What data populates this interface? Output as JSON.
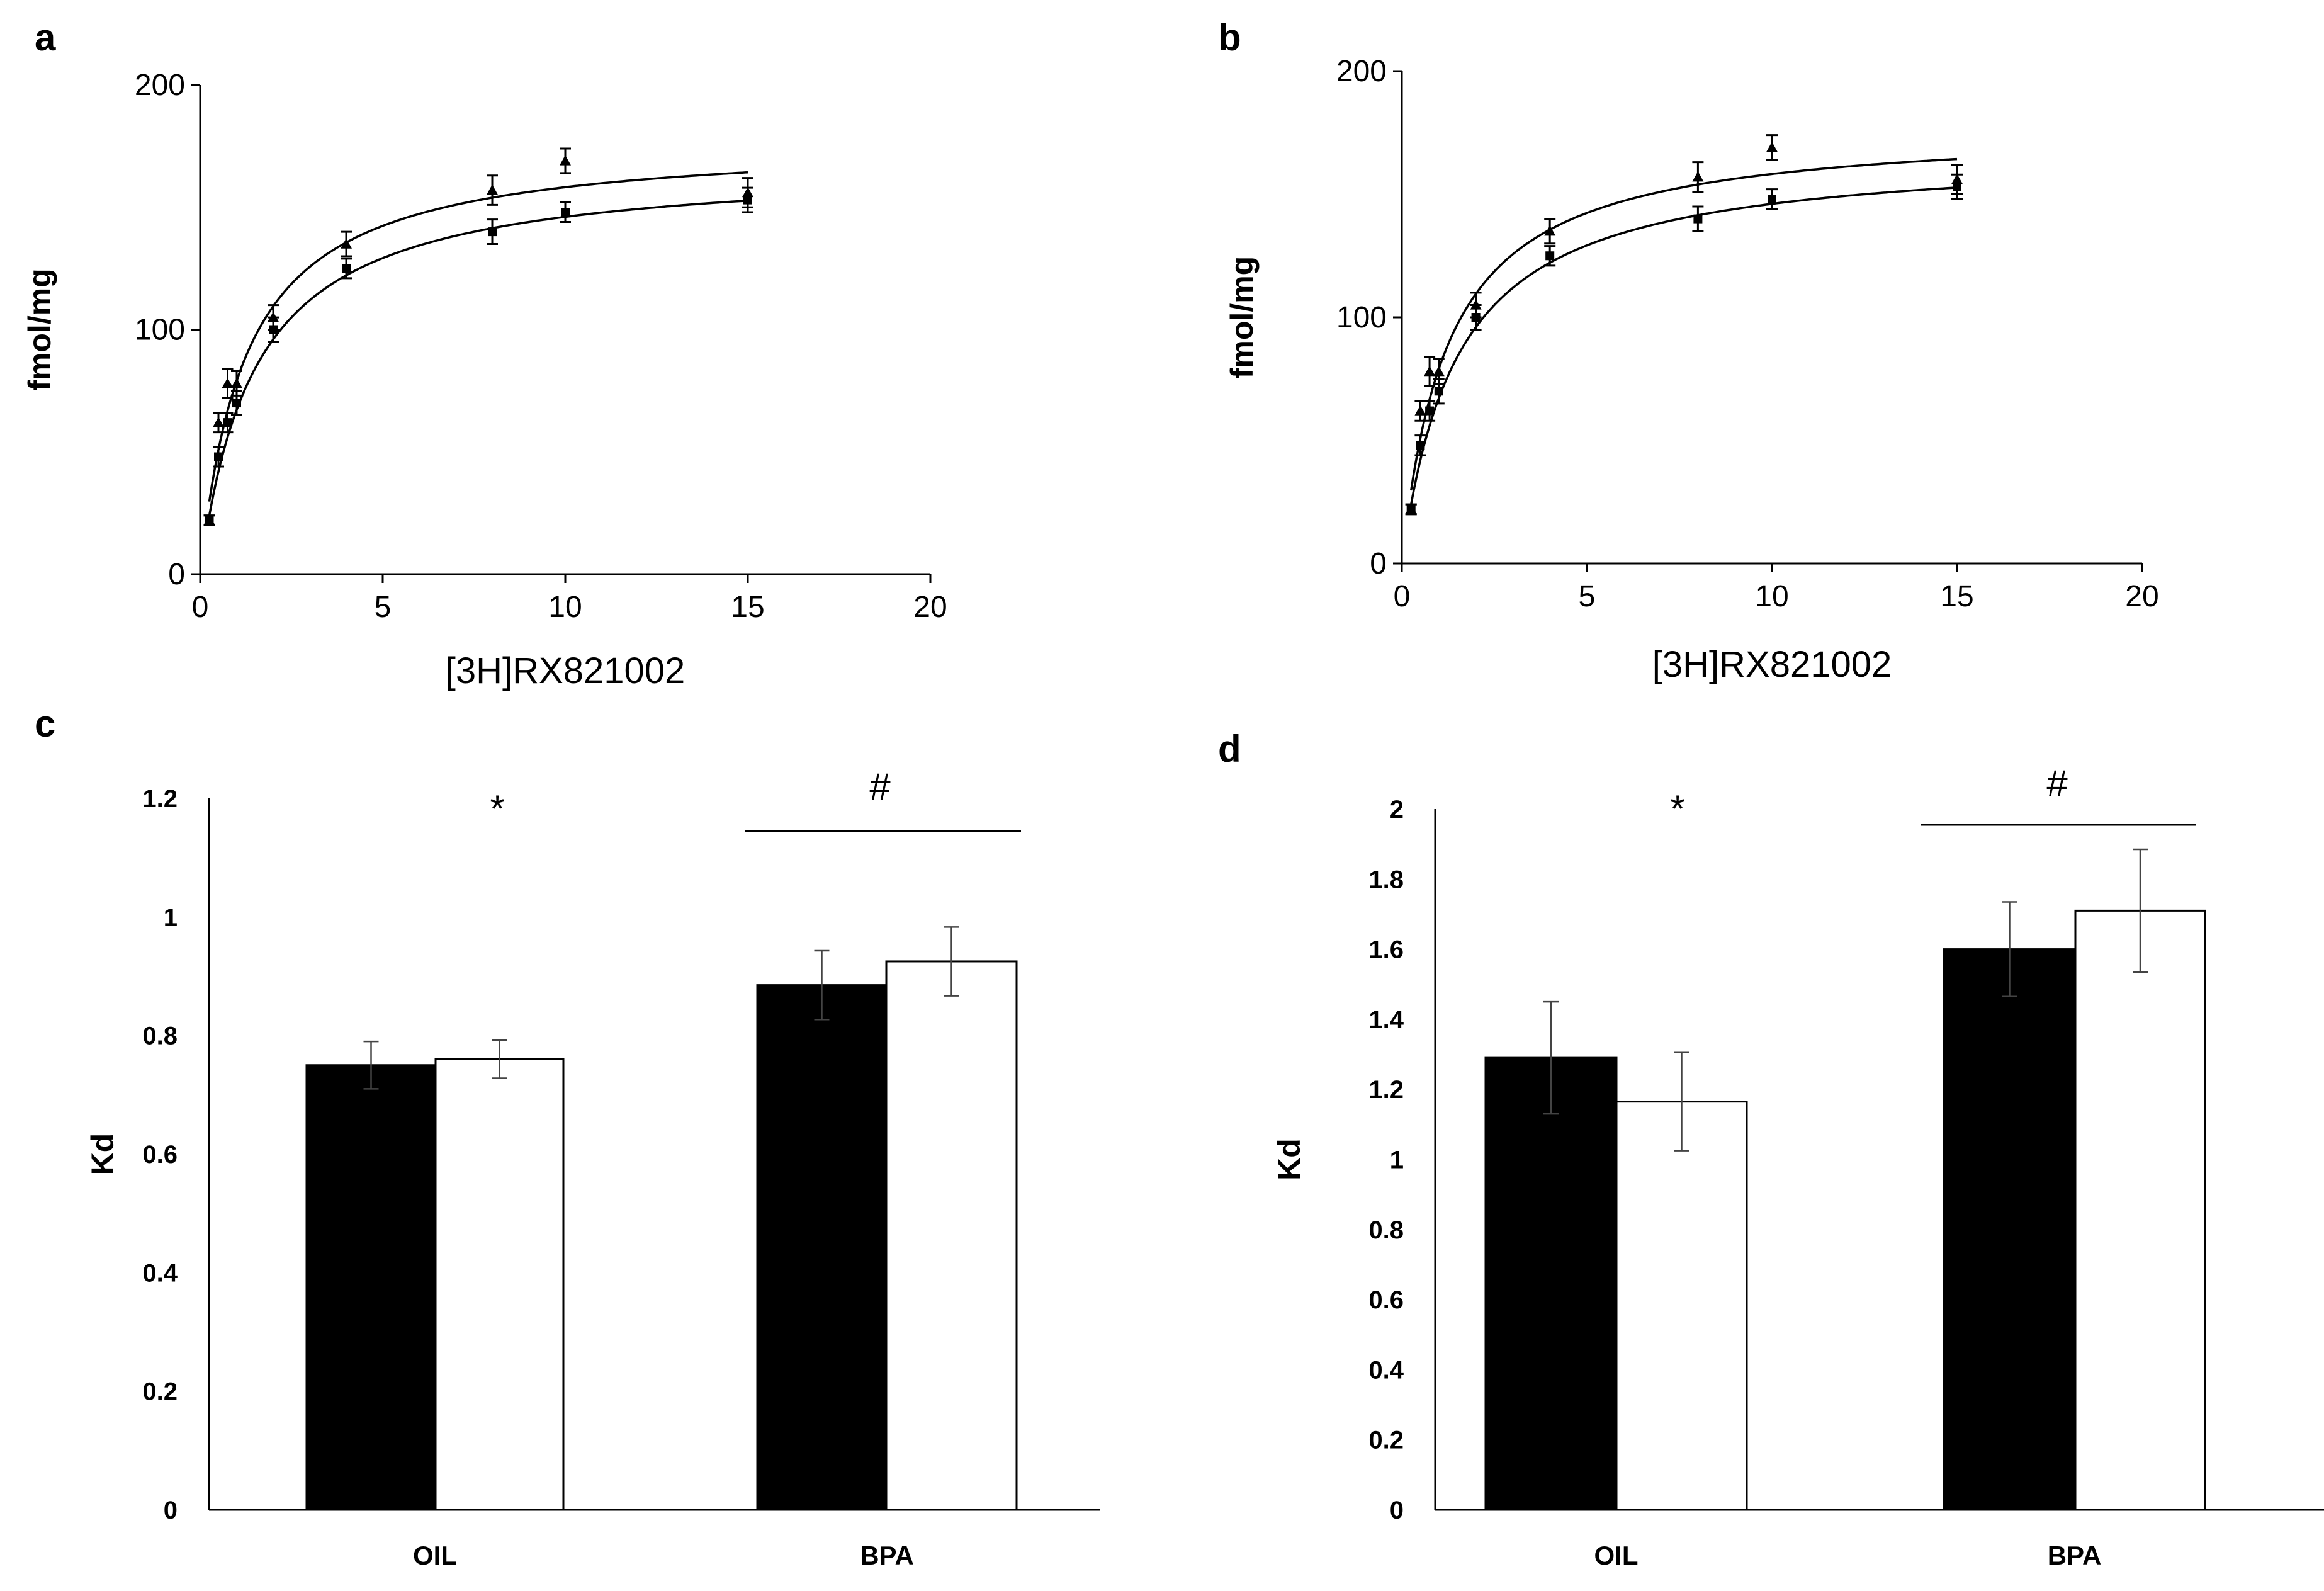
{
  "chart_data": [
    {
      "panel": "a",
      "type": "scatter",
      "xlabel": "[3H]RX821002",
      "ylabel": "fmol/mg",
      "xlim": [
        0,
        20
      ],
      "ylim": [
        0,
        200
      ],
      "xticks": [
        "0",
        "5",
        "10",
        "15",
        "20"
      ],
      "yticks": [
        "0",
        "100",
        "200"
      ],
      "fit": {
        "model": "one-site saturation binding (Bmax*x/(Kd+x))"
      },
      "series": [
        {
          "name": "triangle",
          "marker": "triangle",
          "bmax": 178,
          "kd": 1.25,
          "x": [
            0.25,
            0.5,
            0.75,
            1,
            2,
            4,
            8,
            10,
            15
          ],
          "y": [
            22,
            62,
            78,
            78,
            105,
            135,
            157,
            169,
            156
          ],
          "err": [
            2,
            4,
            6,
            5,
            5,
            5,
            6,
            5,
            6
          ]
        },
        {
          "name": "square",
          "marker": "square",
          "bmax": 168,
          "kd": 1.5,
          "x": [
            0.25,
            0.5,
            0.75,
            1,
            2,
            4,
            8,
            10,
            15
          ],
          "y": [
            22,
            48,
            62,
            70,
            100,
            125,
            140,
            148,
            153
          ],
          "err": [
            2,
            4,
            4,
            5,
            5,
            4,
            5,
            4,
            5
          ]
        }
      ]
    },
    {
      "panel": "b",
      "type": "scatter",
      "xlabel": "[3H]RX821002",
      "ylabel": "fmol/mg",
      "xlim": [
        0,
        20
      ],
      "ylim": [
        0,
        200
      ],
      "xticks": [
        "0",
        "5",
        "10",
        "15",
        "20"
      ],
      "yticks": [
        "0",
        "100",
        "200"
      ],
      "fit": {
        "model": "one-site saturation binding (Bmax*x/(Kd+x))"
      },
      "series": [
        {
          "name": "triangle",
          "marker": "triangle",
          "bmax": 178,
          "kd": 1.25,
          "x": [
            0.25,
            0.5,
            0.75,
            1,
            2,
            4,
            8,
            10,
            15
          ],
          "y": [
            22,
            62,
            78,
            78,
            105,
            135,
            157,
            169,
            156
          ],
          "err": [
            2,
            4,
            6,
            5,
            5,
            5,
            6,
            5,
            6
          ]
        },
        {
          "name": "square",
          "marker": "square",
          "bmax": 168,
          "kd": 1.5,
          "x": [
            0.25,
            0.5,
            0.75,
            1,
            2,
            4,
            8,
            10,
            15
          ],
          "y": [
            22,
            48,
            62,
            70,
            100,
            125,
            140,
            148,
            153
          ],
          "err": [
            2,
            4,
            4,
            5,
            5,
            4,
            5,
            4,
            5
          ]
        }
      ]
    },
    {
      "panel": "c",
      "type": "bar",
      "ylabel": "Kd",
      "ylim": [
        0,
        1.2
      ],
      "yticks": [
        "0",
        "0.2",
        "0.4",
        "0.6",
        "0.8",
        "1",
        "1.2"
      ],
      "categories": [
        "OIL",
        "BPA"
      ],
      "series": [
        {
          "name": "black",
          "color": "#000000",
          "values": [
            0.75,
            0.885
          ],
          "err": [
            0.04,
            0.058
          ]
        },
        {
          "name": "white",
          "color": "#ffffff",
          "values": [
            0.76,
            0.925
          ],
          "err": [
            0.032,
            0.058
          ]
        }
      ],
      "annotations": {
        "star": "*",
        "hash": "#"
      }
    },
    {
      "panel": "d",
      "type": "bar",
      "ylabel": "Kd",
      "ylim": [
        0,
        2
      ],
      "yticks": [
        "0",
        "0.2",
        "0.4",
        "0.6",
        "0.8",
        "1",
        "1.2",
        "1.4",
        "1.6",
        "1.8",
        "2"
      ],
      "categories": [
        "OIL",
        "BPA"
      ],
      "series": [
        {
          "name": "black",
          "color": "#000000",
          "values": [
            1.29,
            1.6
          ],
          "err": [
            0.16,
            0.135
          ]
        },
        {
          "name": "white",
          "color": "#ffffff",
          "values": [
            1.165,
            1.71
          ],
          "err": [
            0.14,
            0.175
          ]
        }
      ],
      "annotations": {
        "star": "*",
        "hash": "#"
      }
    }
  ]
}
